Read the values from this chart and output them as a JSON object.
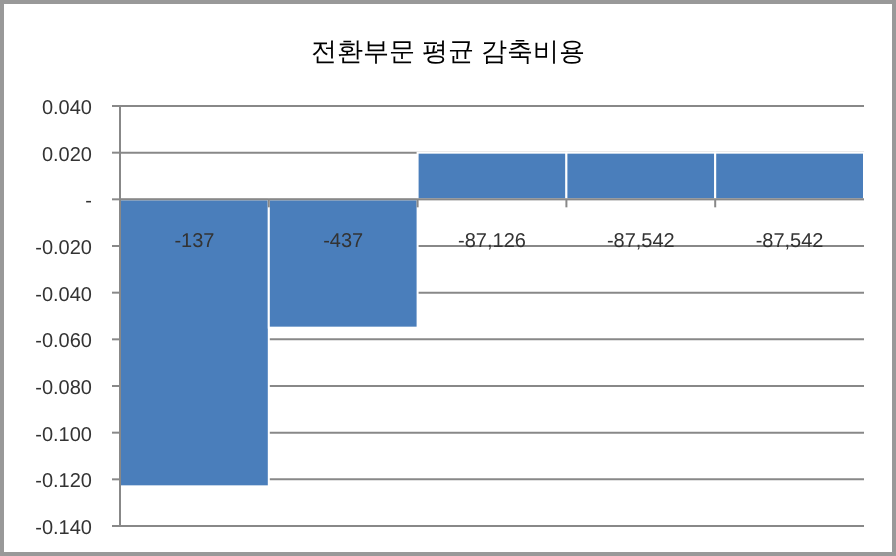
{
  "chart_data": {
    "type": "bar",
    "title": "전환부문 평균 감축비용",
    "categories": [
      "-137",
      "-437",
      "-87,126",
      "-87,542",
      "-87,542"
    ],
    "values": [
      -0.123,
      -0.055,
      0.02,
      0.02,
      0.02
    ],
    "color": "#4a7ebb",
    "ylim": [
      -0.14,
      0.04
    ],
    "yticks": [
      {
        "value": 0.04,
        "label": "0.040"
      },
      {
        "value": 0.02,
        "label": "0.020"
      },
      {
        "value": 0,
        "label": "-"
      },
      {
        "value": -0.02,
        "label": "-0.020"
      },
      {
        "value": -0.04,
        "label": "-0.040"
      },
      {
        "value": -0.06,
        "label": "-0.060"
      },
      {
        "value": -0.08,
        "label": "-0.080"
      },
      {
        "value": -0.1,
        "label": "-0.100"
      },
      {
        "value": -0.12,
        "label": "-0.120"
      },
      {
        "value": -0.14,
        "label": "-0.140"
      }
    ],
    "grid": "y"
  }
}
